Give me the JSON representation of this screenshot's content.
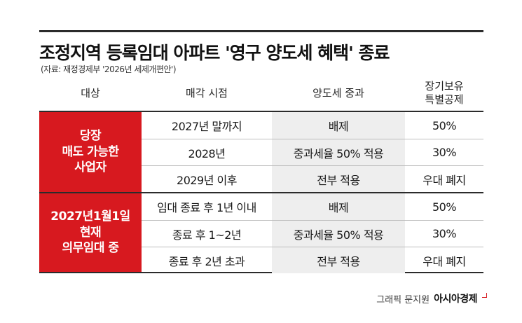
{
  "title": "조정지역 등록임대 아파트 '영구 양도세 혜택' 종료",
  "source": "(자료: 재정경제부 '2026년 세제개편안')",
  "headers": {
    "category": "대상",
    "sale_timing": "매각 시점",
    "capital_gains_tax": "양도세 중과",
    "long_term_deduction_line1": "장기보유",
    "long_term_deduction_line2": "특별공제"
  },
  "groups": [
    {
      "label_lines": [
        "당장",
        "매도 가능한",
        "사업자"
      ],
      "rows": [
        {
          "timing": "2027년 말까지",
          "tax": "배제",
          "deduction": "50%"
        },
        {
          "timing": "2028년",
          "tax": "중과세율 50% 적용",
          "deduction": "30%"
        },
        {
          "timing": "2029년 이후",
          "tax": "전부 적용",
          "deduction": "우대 폐지"
        }
      ]
    },
    {
      "label_lines": [
        "2027년1월1일",
        "현재",
        "의무임대 중"
      ],
      "rows": [
        {
          "timing": "임대 종료 후 1년 이내",
          "tax": "배제",
          "deduction": "50%"
        },
        {
          "timing": "종료 후 1~2년",
          "tax": "중과세율 50% 적용",
          "deduction": "30%"
        },
        {
          "timing": "종료 후 2년 초과",
          "tax": "전부 적용",
          "deduction": "우대 폐지"
        }
      ]
    }
  ],
  "credit": {
    "graphic": "그래픽 문지원",
    "brand": "아시아경제"
  },
  "colors": {
    "accent_red": "#d7191f",
    "shaded_column": "#eeeeee",
    "rule": "#2b2b2b"
  }
}
